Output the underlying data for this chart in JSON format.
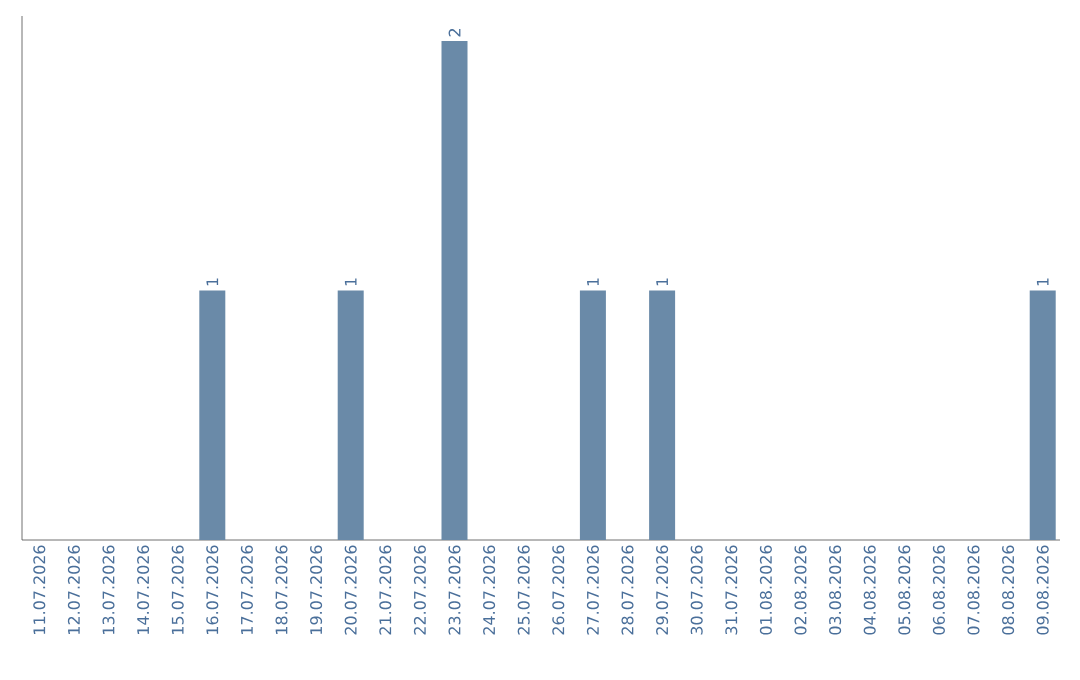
{
  "chart_data": {
    "type": "bar",
    "categories": [
      "11.07.2026",
      "12.07.2026",
      "13.07.2026",
      "14.07.2026",
      "15.07.2026",
      "16.07.2026",
      "17.07.2026",
      "18.07.2026",
      "19.07.2026",
      "20.07.2026",
      "21.07.2026",
      "22.07.2026",
      "23.07.2026",
      "24.07.2026",
      "25.07.2026",
      "26.07.2026",
      "27.07.2026",
      "28.07.2026",
      "29.07.2026",
      "30.07.2026",
      "31.07.2026",
      "01.08.2026",
      "02.08.2026",
      "03.08.2026",
      "04.08.2026",
      "05.08.2026",
      "06.08.2026",
      "07.08.2026",
      "08.08.2026",
      "09.08.2026"
    ],
    "values": [
      0,
      0,
      0,
      0,
      0,
      1,
      0,
      0,
      0,
      1,
      0,
      0,
      2,
      0,
      0,
      0,
      1,
      0,
      1,
      0,
      0,
      0,
      0,
      0,
      0,
      0,
      0,
      0,
      0,
      1
    ],
    "value_labels": [
      null,
      null,
      null,
      null,
      null,
      "1",
      null,
      null,
      null,
      "1",
      null,
      null,
      "2",
      null,
      null,
      null,
      "1",
      null,
      "1",
      null,
      null,
      null,
      null,
      null,
      null,
      null,
      null,
      null,
      null,
      "1"
    ],
    "color": "#6a8aa8",
    "tick_labels": "x"
  }
}
